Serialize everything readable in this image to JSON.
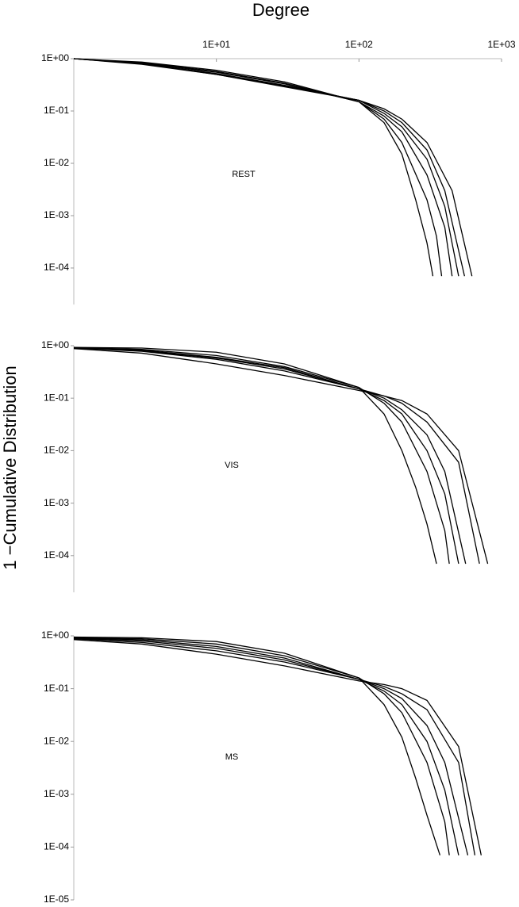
{
  "chart_data": [
    {
      "type": "line",
      "x_label": "Degree",
      "y_label": "1 −Cumulative Distribution",
      "annotation": "REST",
      "x_log": true,
      "y_log": true,
      "xlim": [
        1,
        1000
      ],
      "xticks": [
        {
          "value": 10,
          "label": "1E+01"
        },
        {
          "value": 100,
          "label": "1E+02"
        },
        {
          "value": 1000,
          "label": "1E+03"
        }
      ],
      "ylim": [
        2e-05,
        1
      ],
      "yticks": [
        {
          "value": 1,
          "label": "1E+00"
        },
        {
          "value": 0.1,
          "label": "1E-01"
        },
        {
          "value": 0.01,
          "label": "1E-02"
        },
        {
          "value": 0.001,
          "label": "1E-03"
        },
        {
          "value": 0.0001,
          "label": "1E-04"
        }
      ],
      "series": [
        {
          "color": "#000000",
          "x": [
            1,
            3,
            10,
            30,
            100,
            150,
            200,
            250,
            300,
            330
          ],
          "values": [
            1,
            0.86,
            0.6,
            0.36,
            0.15,
            0.06,
            0.015,
            0.002,
            0.0003,
            7e-05
          ]
        },
        {
          "color": "#000000",
          "x": [
            1,
            3,
            10,
            30,
            100,
            150,
            200,
            300,
            350,
            380
          ],
          "values": [
            1,
            0.84,
            0.57,
            0.34,
            0.15,
            0.07,
            0.025,
            0.002,
            0.0004,
            7e-05
          ]
        },
        {
          "color": "#000000",
          "x": [
            1,
            3,
            10,
            30,
            100,
            150,
            200,
            300,
            400,
            450
          ],
          "values": [
            1,
            0.82,
            0.55,
            0.33,
            0.15,
            0.08,
            0.04,
            0.006,
            0.0006,
            7e-05
          ]
        },
        {
          "color": "#000000",
          "x": [
            1,
            3,
            10,
            30,
            100,
            150,
            200,
            300,
            400,
            500
          ],
          "values": [
            1,
            0.8,
            0.52,
            0.31,
            0.16,
            0.09,
            0.05,
            0.012,
            0.0015,
            7e-05
          ]
        },
        {
          "color": "#000000",
          "x": [
            1,
            3,
            10,
            30,
            100,
            150,
            200,
            300,
            400,
            550
          ],
          "values": [
            1,
            0.8,
            0.5,
            0.3,
            0.16,
            0.1,
            0.06,
            0.018,
            0.003,
            7e-05
          ]
        },
        {
          "color": "#000000",
          "x": [
            1,
            3,
            10,
            30,
            100,
            150,
            200,
            300,
            450,
            620
          ],
          "values": [
            1,
            0.78,
            0.5,
            0.29,
            0.16,
            0.11,
            0.07,
            0.025,
            0.003,
            7e-05
          ]
        }
      ]
    },
    {
      "type": "line",
      "annotation": "VIS",
      "x_log": true,
      "y_log": true,
      "xlim": [
        1,
        1000
      ],
      "ylim": [
        2e-05,
        1
      ],
      "yticks": [
        {
          "value": 1,
          "label": "1E+00"
        },
        {
          "value": 0.1,
          "label": "1E-01"
        },
        {
          "value": 0.01,
          "label": "1E-02"
        },
        {
          "value": 0.001,
          "label": "1E-03"
        },
        {
          "value": 0.0001,
          "label": "1E-04"
        }
      ],
      "series": [
        {
          "color": "#000000",
          "x": [
            1,
            3,
            10,
            30,
            100,
            150,
            200,
            250,
            300,
            350
          ],
          "values": [
            0.93,
            0.9,
            0.75,
            0.45,
            0.16,
            0.05,
            0.01,
            0.002,
            0.0004,
            7e-05
          ]
        },
        {
          "color": "#000000",
          "x": [
            1,
            3,
            10,
            30,
            100,
            150,
            200,
            300,
            400,
            430
          ],
          "values": [
            0.92,
            0.85,
            0.65,
            0.4,
            0.16,
            0.08,
            0.035,
            0.004,
            0.0003,
            7e-05
          ]
        },
        {
          "color": "#000000",
          "x": [
            1,
            3,
            10,
            30,
            100,
            150,
            200,
            300,
            400,
            500
          ],
          "values": [
            0.92,
            0.82,
            0.6,
            0.38,
            0.15,
            0.09,
            0.05,
            0.01,
            0.0015,
            7e-05
          ]
        },
        {
          "color": "#000000",
          "x": [
            1,
            3,
            10,
            30,
            100,
            150,
            200,
            300,
            400,
            560
          ],
          "values": [
            0.9,
            0.8,
            0.58,
            0.36,
            0.15,
            0.1,
            0.06,
            0.02,
            0.004,
            7e-05
          ]
        },
        {
          "color": "#000000",
          "x": [
            1,
            3,
            10,
            30,
            100,
            150,
            200,
            300,
            500,
            700
          ],
          "values": [
            0.9,
            0.78,
            0.55,
            0.33,
            0.15,
            0.11,
            0.08,
            0.035,
            0.006,
            7e-05
          ]
        },
        {
          "color": "#000000",
          "x": [
            1,
            3,
            10,
            30,
            100,
            150,
            200,
            300,
            500,
            800
          ],
          "values": [
            0.88,
            0.72,
            0.45,
            0.27,
            0.14,
            0.11,
            0.09,
            0.05,
            0.01,
            7e-05
          ]
        }
      ]
    },
    {
      "type": "line",
      "annotation": "MS",
      "x_log": true,
      "y_log": true,
      "xlim": [
        1,
        1000
      ],
      "ylim": [
        1e-05,
        1
      ],
      "yticks": [
        {
          "value": 1,
          "label": "1E+00"
        },
        {
          "value": 0.1,
          "label": "1E-01"
        },
        {
          "value": 0.01,
          "label": "1E-02"
        },
        {
          "value": 0.001,
          "label": "1E-03"
        },
        {
          "value": 0.0001,
          "label": "1E-04"
        },
        {
          "value": 1e-05,
          "label": "1E-05"
        }
      ],
      "series": [
        {
          "color": "#000000",
          "x": [
            1,
            3,
            10,
            30,
            100,
            150,
            200,
            250,
            300,
            370
          ],
          "values": [
            0.95,
            0.92,
            0.78,
            0.47,
            0.16,
            0.05,
            0.012,
            0.002,
            0.0004,
            7e-05
          ]
        },
        {
          "color": "#000000",
          "x": [
            1,
            3,
            10,
            30,
            100,
            150,
            200,
            300,
            400,
            430
          ],
          "values": [
            0.93,
            0.88,
            0.7,
            0.42,
            0.16,
            0.08,
            0.035,
            0.004,
            0.0003,
            7e-05
          ]
        },
        {
          "color": "#000000",
          "x": [
            1,
            3,
            10,
            30,
            100,
            150,
            200,
            300,
            400,
            500
          ],
          "values": [
            0.92,
            0.84,
            0.63,
            0.38,
            0.15,
            0.09,
            0.05,
            0.01,
            0.0012,
            7e-05
          ]
        },
        {
          "color": "#000000",
          "x": [
            1,
            3,
            10,
            30,
            100,
            150,
            200,
            300,
            400,
            580
          ],
          "values": [
            0.9,
            0.8,
            0.58,
            0.35,
            0.15,
            0.1,
            0.065,
            0.02,
            0.004,
            7e-05
          ]
        },
        {
          "color": "#000000",
          "x": [
            1,
            3,
            10,
            30,
            100,
            150,
            200,
            300,
            500,
            650
          ],
          "values": [
            0.88,
            0.75,
            0.52,
            0.32,
            0.15,
            0.11,
            0.08,
            0.04,
            0.004,
            7e-05
          ]
        },
        {
          "color": "#000000",
          "x": [
            1,
            3,
            10,
            30,
            100,
            150,
            200,
            300,
            500,
            720
          ],
          "values": [
            0.85,
            0.7,
            0.45,
            0.27,
            0.14,
            0.12,
            0.1,
            0.06,
            0.008,
            7e-05
          ]
        }
      ]
    }
  ]
}
